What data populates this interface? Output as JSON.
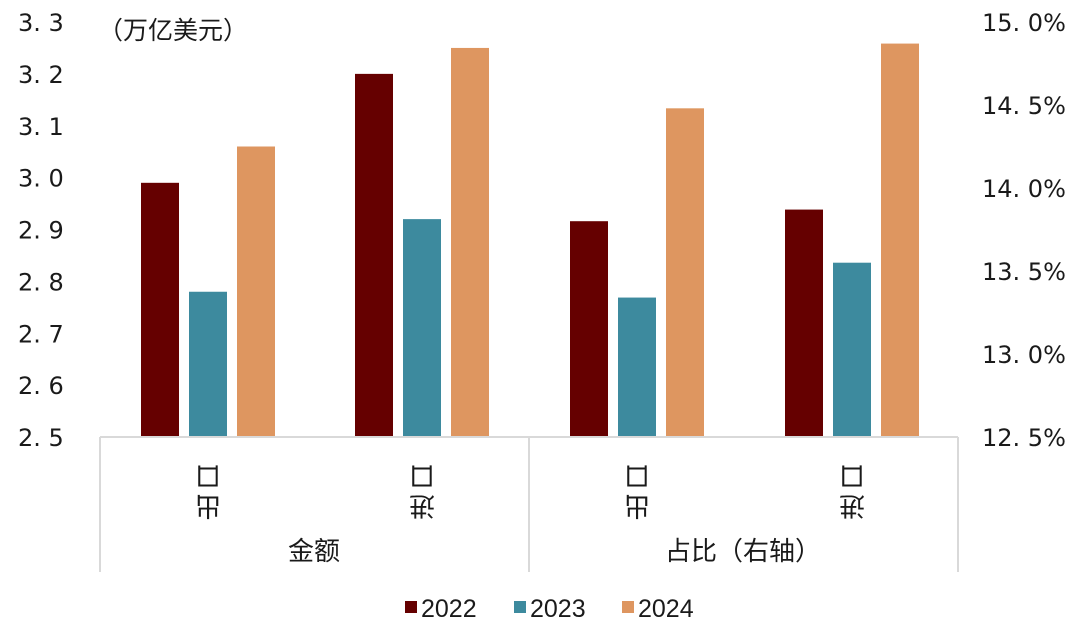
{
  "chart_data": {
    "type": "bar",
    "title": "",
    "unit_label": "（万亿美元）",
    "left_axis": {
      "ylim": [
        2.5,
        3.3
      ],
      "ticks": [
        "2.5",
        "2.6",
        "2.7",
        "2.8",
        "2.9",
        "3.0",
        "3.1",
        "3.2",
        "3.3"
      ],
      "tick_values": [
        2.5,
        2.6,
        2.7,
        2.8,
        2.9,
        3.0,
        3.1,
        3.2,
        3.3
      ]
    },
    "right_axis": {
      "ylim": [
        12.5,
        15.0
      ],
      "ticks": [
        "12.5%",
        "13.0%",
        "13.5%",
        "14.0%",
        "14.5%",
        "15.0%"
      ],
      "tick_values": [
        12.5,
        13.0,
        13.5,
        14.0,
        14.5,
        15.0
      ]
    },
    "groups": [
      {
        "label": "金额",
        "axis": "left",
        "categories": [
          "出口",
          "进口"
        ]
      },
      {
        "label": "占比（右轴）",
        "axis": "right",
        "categories": [
          "出口",
          "进口"
        ]
      }
    ],
    "series": [
      {
        "name": "2022",
        "color": "#650000",
        "values": [
          2.99,
          3.2,
          13.8,
          13.87
        ]
      },
      {
        "name": "2023",
        "color": "#3D8A9E",
        "values": [
          2.78,
          2.92,
          13.34,
          13.55
        ]
      },
      {
        "name": "2024",
        "color": "#DE9660",
        "values": [
          3.06,
          3.25,
          14.48,
          14.87
        ]
      }
    ],
    "legend": {
      "position": "bottom",
      "entries": [
        "2022",
        "2023",
        "2024"
      ]
    },
    "grid": false
  }
}
